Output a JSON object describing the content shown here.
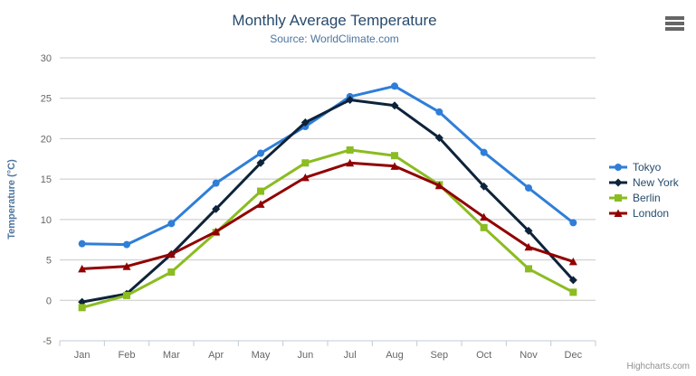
{
  "header": {
    "title": "Monthly Average Temperature",
    "subtitle": "Source: WorldClimate.com"
  },
  "icons": {
    "context_menu": "hamburger-menu"
  },
  "credits": {
    "label": "Highcharts.com"
  },
  "chart_data": {
    "type": "line",
    "title": "Monthly Average Temperature",
    "subtitle": "Source: WorldClimate.com",
    "categories": [
      "Jan",
      "Feb",
      "Mar",
      "Apr",
      "May",
      "Jun",
      "Jul",
      "Aug",
      "Sep",
      "Oct",
      "Nov",
      "Dec"
    ],
    "series": [
      {
        "name": "Tokyo",
        "color": "#2f7ed8",
        "marker": "circle",
        "values": [
          7.0,
          6.9,
          9.5,
          14.5,
          18.2,
          21.5,
          25.2,
          26.5,
          23.3,
          18.3,
          13.9,
          9.6
        ]
      },
      {
        "name": "New York",
        "color": "#0d233a",
        "marker": "diamond",
        "values": [
          -0.2,
          0.8,
          5.7,
          11.3,
          17.0,
          22.0,
          24.8,
          24.1,
          20.1,
          14.1,
          8.6,
          2.5
        ]
      },
      {
        "name": "Berlin",
        "color": "#8bbc21",
        "marker": "square",
        "values": [
          -0.9,
          0.6,
          3.5,
          8.4,
          13.5,
          17.0,
          18.6,
          17.9,
          14.3,
          9.0,
          3.9,
          1.0
        ]
      },
      {
        "name": "London",
        "color": "#910000",
        "marker": "triangle",
        "values": [
          3.9,
          4.2,
          5.7,
          8.5,
          11.9,
          15.2,
          17.0,
          16.6,
          14.2,
          10.3,
          6.6,
          4.8
        ]
      }
    ],
    "xlabel": "",
    "ylabel": "Temperature (°C)",
    "ylim": [
      -5,
      30
    ],
    "ytick_step": 5,
    "grid": true,
    "grid_color": "#c8c8c8",
    "axis_line_color": "#c0cbd6",
    "tick_label_color": "#666666",
    "legend_position": "right"
  }
}
